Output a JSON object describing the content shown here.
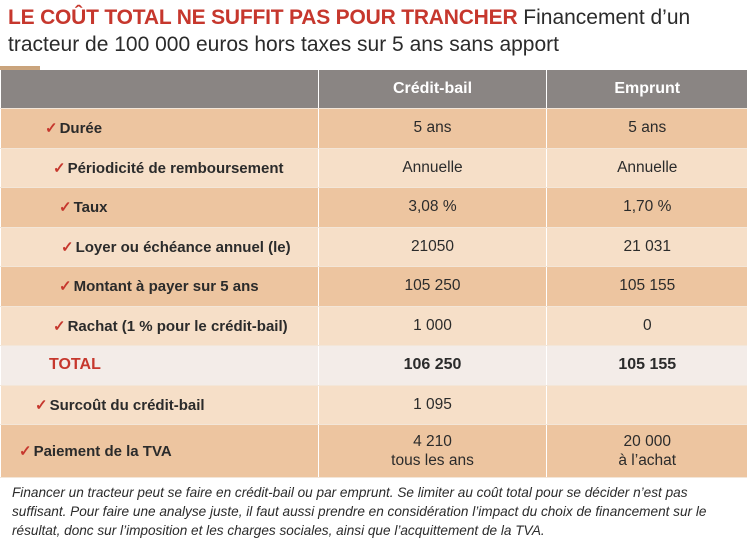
{
  "title": {
    "highlight": "LE COÛT TOTAL NE SUFFIT PAS POUR TRANCHER",
    "rest": "Financement d’un tracteur de 100 000 euros hors taxes sur 5 ans sans apport"
  },
  "table": {
    "headers": [
      "",
      "Crédit-bail",
      "Emprunt"
    ],
    "rows": [
      {
        "label": "Durée",
        "credit_bail": "5 ans",
        "emprunt": "5 ans"
      },
      {
        "label": "Périodicité de remboursement",
        "credit_bail": "Annuelle",
        "emprunt": "Annuelle"
      },
      {
        "label": "Taux",
        "credit_bail": "3,08 %",
        "emprunt": "1,70 %"
      },
      {
        "label": "Loyer ou échéance annuel (le)",
        "credit_bail": "21050",
        "emprunt": "21 031"
      },
      {
        "label": "Montant à payer sur 5 ans",
        "credit_bail": "105 250",
        "emprunt": "105 155"
      },
      {
        "label": "Rachat (1 % pour le crédit-bail)",
        "credit_bail": "1 000",
        "emprunt": "0"
      }
    ],
    "total": {
      "label": "TOTAL",
      "credit_bail": "106 250",
      "emprunt": "105 155"
    },
    "surcout": {
      "label": "Surcoût du crédit-bail",
      "credit_bail": "1 095",
      "emprunt": ""
    },
    "tva": {
      "label": "Paiement de la TVA",
      "credit_bail_1": "4 210",
      "credit_bail_2": "tous les ans",
      "emprunt_1": "20 000",
      "emprunt_2": "à l’achat"
    },
    "check_mark": "✓"
  },
  "caption": "Financer un tracteur peut se faire en crédit-bail ou par emprunt. Se limiter au coût total pour se décider n’est pas suffisant. Pour faire une analyse juste, il faut aussi prendre en considération l’impact du choix de financement sur le résultat, donc sur l’imposition et les charges sociales, ainsi que l’acquittement de la TVA.",
  "colors": {
    "accent": "#c6372d",
    "header": "#8a8583",
    "row_light": "#f6dfc8",
    "row_dark": "#edc5a0"
  }
}
